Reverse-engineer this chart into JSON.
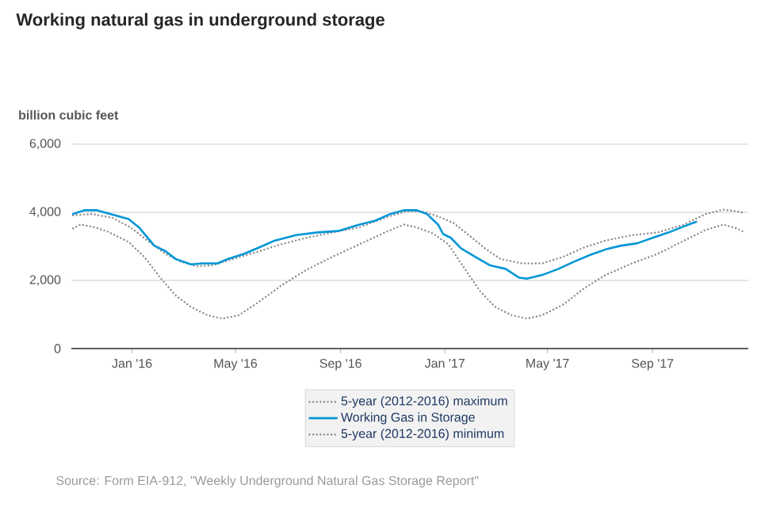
{
  "chart_data": {
    "type": "line",
    "title": "Working natural gas in underground storage",
    "ylabel": "billion cubic feet",
    "annotations": [
      "Source: Form EIA-912, \"Weekly Underground Natural Gas Storage Report\""
    ],
    "xlim": [
      "2015-10-22",
      "2017-12-22"
    ],
    "ylim": [
      0,
      6000
    ],
    "xticks": [
      {
        "value": "2016-01-01",
        "label": "Jan '16"
      },
      {
        "value": "2016-05-01",
        "label": "May '16"
      },
      {
        "value": "2016-09-01",
        "label": "Sep '16"
      },
      {
        "value": "2017-01-01",
        "label": "Jan '17"
      },
      {
        "value": "2017-05-01",
        "label": "May '17"
      },
      {
        "value": "2017-09-01",
        "label": "Sep '17"
      }
    ],
    "yticks": [
      {
        "value": 0,
        "label": "0"
      },
      {
        "value": 2000,
        "label": "2,000"
      },
      {
        "value": 4000,
        "label": "4,000"
      },
      {
        "value": 6000,
        "label": "6,000"
      }
    ],
    "grid": "y",
    "legend": "bottom",
    "marker": "none",
    "series": [
      {
        "name": "5-year (2012-2016) maximum",
        "color": "#888888",
        "line_style": "dotted",
        "x": [
          "2015-10-24",
          "2015-11-15",
          "2015-12-09",
          "2015-12-30",
          "2016-01-21",
          "2016-02-09",
          "2016-02-27",
          "2016-03-16",
          "2016-04-04",
          "2016-04-28",
          "2016-05-23",
          "2016-06-23",
          "2016-07-23",
          "2016-08-23",
          "2016-09-23",
          "2016-10-23",
          "2016-11-17",
          "2016-12-05",
          "2016-12-24",
          "2017-01-11",
          "2017-01-29",
          "2017-02-17",
          "2017-03-07",
          "2017-04-01",
          "2017-04-25",
          "2017-05-20",
          "2017-06-13",
          "2017-07-08",
          "2017-08-08",
          "2017-09-07",
          "2017-10-08",
          "2017-11-02",
          "2017-11-23",
          "2017-12-08",
          "2017-12-18"
        ],
        "values": [
          3910,
          3950,
          3840,
          3560,
          3130,
          2780,
          2550,
          2420,
          2440,
          2630,
          2810,
          3060,
          3250,
          3410,
          3560,
          3840,
          4030,
          4030,
          3880,
          3690,
          3330,
          2940,
          2630,
          2500,
          2500,
          2700,
          2970,
          3170,
          3330,
          3410,
          3640,
          3950,
          4080,
          4030,
          3980
        ]
      },
      {
        "name": "Working Gas in Storage",
        "color": "#0096d7",
        "line_style": "solid",
        "x": [
          "2015-10-24",
          "2015-11-06",
          "2015-11-21",
          "2015-12-12",
          "2015-12-28",
          "2016-01-09",
          "2016-01-27",
          "2016-02-09",
          "2016-02-21",
          "2016-03-10",
          "2016-03-23",
          "2016-04-10",
          "2016-04-22",
          "2016-05-11",
          "2016-05-29",
          "2016-06-16",
          "2016-07-11",
          "2016-08-05",
          "2016-08-29",
          "2016-09-23",
          "2016-10-11",
          "2016-10-29",
          "2016-11-14",
          "2016-11-29",
          "2016-12-11",
          "2016-12-24",
          "2016-12-30",
          "2017-01-08",
          "2017-01-20",
          "2017-02-05",
          "2017-02-23",
          "2017-03-13",
          "2017-03-29",
          "2017-04-07",
          "2017-04-25",
          "2017-05-14",
          "2017-06-01",
          "2017-06-20",
          "2017-07-08",
          "2017-07-26",
          "2017-08-14",
          "2017-09-01",
          "2017-09-20",
          "2017-10-08",
          "2017-10-22"
        ],
        "values": [
          3950,
          4060,
          4060,
          3910,
          3800,
          3560,
          3020,
          2860,
          2630,
          2470,
          2500,
          2500,
          2630,
          2780,
          2970,
          3170,
          3330,
          3410,
          3450,
          3640,
          3750,
          3950,
          4060,
          4060,
          3950,
          3640,
          3360,
          3250,
          2940,
          2700,
          2440,
          2340,
          2080,
          2050,
          2160,
          2340,
          2550,
          2750,
          2910,
          3020,
          3090,
          3250,
          3410,
          3590,
          3720
        ]
      },
      {
        "name": "5-year (2012-2016) minimum",
        "color": "#888888",
        "line_style": "dotted",
        "x": [
          "2015-10-24",
          "2015-11-02",
          "2015-11-18",
          "2015-12-03",
          "2015-12-28",
          "2016-01-15",
          "2016-02-03",
          "2016-02-21",
          "2016-03-10",
          "2016-03-29",
          "2016-04-16",
          "2016-05-05",
          "2016-05-29",
          "2016-06-23",
          "2016-07-23",
          "2016-08-23",
          "2016-09-23",
          "2016-10-23",
          "2016-11-14",
          "2016-11-29",
          "2016-12-18",
          "2017-01-05",
          "2017-01-23",
          "2017-02-11",
          "2017-03-01",
          "2017-03-20",
          "2017-04-07",
          "2017-04-25",
          "2017-05-20",
          "2017-06-13",
          "2017-07-08",
          "2017-08-08",
          "2017-09-07",
          "2017-10-08",
          "2017-11-02",
          "2017-11-23",
          "2017-12-08",
          "2017-12-18"
        ],
        "values": [
          3530,
          3640,
          3560,
          3440,
          3130,
          2700,
          2080,
          1560,
          1220,
          980,
          880,
          980,
          1380,
          1840,
          2310,
          2700,
          3060,
          3410,
          3640,
          3560,
          3380,
          3060,
          2390,
          1690,
          1220,
          980,
          880,
          980,
          1300,
          1770,
          2160,
          2500,
          2780,
          3170,
          3480,
          3640,
          3530,
          3410
        ]
      }
    ]
  }
}
